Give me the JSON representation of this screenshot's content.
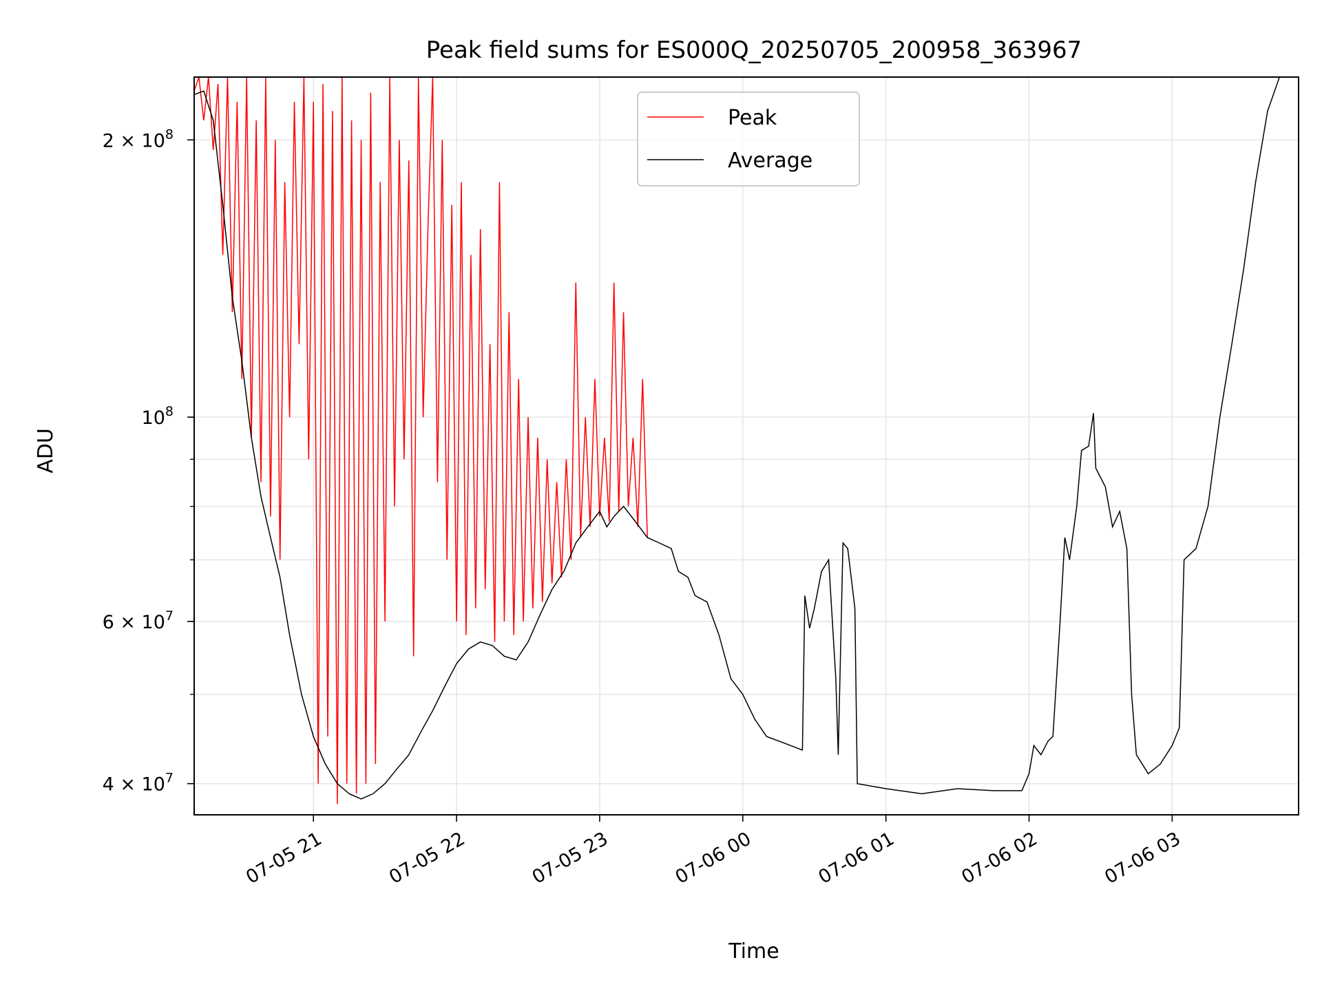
{
  "chart_data": {
    "type": "line",
    "title": "Peak field sums for ES000Q_20250705_200958_363967",
    "xlabel": "Time",
    "ylabel": "ADU",
    "yscale": "log",
    "xlim": [
      "2025-07-05 20:10",
      "2025-07-06 03:53"
    ],
    "ylim": [
      37000000,
      234000000
    ],
    "grid": true,
    "legend_position": "top-center",
    "x_ticks": [
      {
        "value": "2025-07-05 21:00",
        "label": "07-05 21"
      },
      {
        "value": "2025-07-05 22:00",
        "label": "07-05 22"
      },
      {
        "value": "2025-07-05 23:00",
        "label": "07-05 23"
      },
      {
        "value": "2025-07-06 00:00",
        "label": "07-06 00"
      },
      {
        "value": "2025-07-06 01:00",
        "label": "07-06 01"
      },
      {
        "value": "2025-07-06 02:00",
        "label": "07-06 02"
      },
      {
        "value": "2025-07-06 03:00",
        "label": "07-06 03"
      }
    ],
    "y_ticks": [
      {
        "value": 40000000,
        "label": "4 × 10",
        "exp": "7"
      },
      {
        "value": 60000000,
        "label": "6 × 10",
        "exp": "7"
      },
      {
        "value": 100000000,
        "label": "10",
        "exp": "8"
      },
      {
        "value": 200000000,
        "label": "2 × 10",
        "exp": "8"
      }
    ],
    "series": [
      {
        "name": "Average",
        "color": "#000000",
        "points": [
          [
            "2025-07-05 20:10",
            224000000
          ],
          [
            "2025-07-05 20:14",
            226000000
          ],
          [
            "2025-07-05 20:18",
            210000000
          ],
          [
            "2025-07-05 20:22",
            170000000
          ],
          [
            "2025-07-05 20:26",
            135000000
          ],
          [
            "2025-07-05 20:30",
            115000000
          ],
          [
            "2025-07-05 20:34",
            95000000
          ],
          [
            "2025-07-05 20:38",
            82000000
          ],
          [
            "2025-07-05 20:42",
            74000000
          ],
          [
            "2025-07-05 20:46",
            67000000
          ],
          [
            "2025-07-05 20:50",
            58000000
          ],
          [
            "2025-07-05 20:55",
            50000000
          ],
          [
            "2025-07-05 21:00",
            45000000
          ],
          [
            "2025-07-05 21:05",
            42000000
          ],
          [
            "2025-07-05 21:10",
            40000000
          ],
          [
            "2025-07-05 21:15",
            39000000
          ],
          [
            "2025-07-05 21:20",
            38500000
          ],
          [
            "2025-07-05 21:25",
            39000000
          ],
          [
            "2025-07-05 21:30",
            40000000
          ],
          [
            "2025-07-05 21:35",
            41500000
          ],
          [
            "2025-07-05 21:40",
            43000000
          ],
          [
            "2025-07-05 21:45",
            45500000
          ],
          [
            "2025-07-05 21:50",
            48000000
          ],
          [
            "2025-07-05 21:55",
            51000000
          ],
          [
            "2025-07-05 22:00",
            54000000
          ],
          [
            "2025-07-05 22:05",
            56000000
          ],
          [
            "2025-07-05 22:10",
            57000000
          ],
          [
            "2025-07-05 22:15",
            56500000
          ],
          [
            "2025-07-05 22:20",
            55000000
          ],
          [
            "2025-07-05 22:25",
            54500000
          ],
          [
            "2025-07-05 22:30",
            57000000
          ],
          [
            "2025-07-05 22:35",
            61000000
          ],
          [
            "2025-07-05 22:40",
            65000000
          ],
          [
            "2025-07-05 22:45",
            68000000
          ],
          [
            "2025-07-05 22:50",
            73000000
          ],
          [
            "2025-07-05 22:55",
            76000000
          ],
          [
            "2025-07-05 23:00",
            79000000
          ],
          [
            "2025-07-05 23:03",
            76000000
          ],
          [
            "2025-07-05 23:06",
            78000000
          ],
          [
            "2025-07-05 23:10",
            80000000
          ],
          [
            "2025-07-05 23:15",
            77000000
          ],
          [
            "2025-07-05 23:20",
            74000000
          ],
          [
            "2025-07-05 23:25",
            73000000
          ],
          [
            "2025-07-05 23:30",
            72000000
          ],
          [
            "2025-07-05 23:33",
            68000000
          ],
          [
            "2025-07-05 23:37",
            67000000
          ],
          [
            "2025-07-05 23:40",
            64000000
          ],
          [
            "2025-07-05 23:45",
            63000000
          ],
          [
            "2025-07-05 23:50",
            58000000
          ],
          [
            "2025-07-05 23:55",
            52000000
          ],
          [
            "2025-07-06 00:00",
            50000000
          ],
          [
            "2025-07-06 00:05",
            47000000
          ],
          [
            "2025-07-06 00:10",
            45000000
          ],
          [
            "2025-07-06 00:15",
            44500000
          ],
          [
            "2025-07-06 00:20",
            44000000
          ],
          [
            "2025-07-06 00:25",
            43500000
          ],
          [
            "2025-07-06 00:26",
            64000000
          ],
          [
            "2025-07-06 00:28",
            59000000
          ],
          [
            "2025-07-06 00:30",
            62000000
          ],
          [
            "2025-07-06 00:33",
            68000000
          ],
          [
            "2025-07-06 00:36",
            70000000
          ],
          [
            "2025-07-06 00:39",
            52000000
          ],
          [
            "2025-07-06 00:40",
            43000000
          ],
          [
            "2025-07-06 00:42",
            73000000
          ],
          [
            "2025-07-06 00:44",
            72000000
          ],
          [
            "2025-07-06 00:47",
            62000000
          ],
          [
            "2025-07-06 00:48",
            40000000
          ],
          [
            "2025-07-06 01:00",
            39500000
          ],
          [
            "2025-07-06 01:15",
            39000000
          ],
          [
            "2025-07-06 01:30",
            39500000
          ],
          [
            "2025-07-06 01:45",
            39300000
          ],
          [
            "2025-07-06 01:57",
            39300000
          ],
          [
            "2025-07-06 02:00",
            41000000
          ],
          [
            "2025-07-06 02:02",
            44000000
          ],
          [
            "2025-07-06 02:05",
            43000000
          ],
          [
            "2025-07-06 02:08",
            44500000
          ],
          [
            "2025-07-06 02:10",
            45000000
          ],
          [
            "2025-07-06 02:13",
            60000000
          ],
          [
            "2025-07-06 02:15",
            74000000
          ],
          [
            "2025-07-06 02:17",
            70000000
          ],
          [
            "2025-07-06 02:20",
            80000000
          ],
          [
            "2025-07-06 02:22",
            92000000
          ],
          [
            "2025-07-06 02:25",
            93000000
          ],
          [
            "2025-07-06 02:27",
            101000000
          ],
          [
            "2025-07-06 02:28",
            88000000
          ],
          [
            "2025-07-06 02:32",
            84000000
          ],
          [
            "2025-07-06 02:35",
            76000000
          ],
          [
            "2025-07-06 02:38",
            79000000
          ],
          [
            "2025-07-06 02:41",
            72000000
          ],
          [
            "2025-07-06 02:43",
            50000000
          ],
          [
            "2025-07-06 02:45",
            43000000
          ],
          [
            "2025-07-06 02:50",
            41000000
          ],
          [
            "2025-07-06 02:55",
            42000000
          ],
          [
            "2025-07-06 03:00",
            44000000
          ],
          [
            "2025-07-06 03:03",
            46000000
          ],
          [
            "2025-07-06 03:05",
            70000000
          ],
          [
            "2025-07-06 03:10",
            72000000
          ],
          [
            "2025-07-06 03:15",
            80000000
          ],
          [
            "2025-07-06 03:20",
            100000000
          ],
          [
            "2025-07-06 03:25",
            120000000
          ],
          [
            "2025-07-06 03:30",
            145000000
          ],
          [
            "2025-07-06 03:35",
            180000000
          ],
          [
            "2025-07-06 03:40",
            215000000
          ],
          [
            "2025-07-06 03:45",
            234000000
          ],
          [
            "2025-07-06 03:53",
            234000000
          ]
        ]
      },
      {
        "name": "Peak",
        "color": "#ff0000",
        "points": [
          [
            "2025-07-05 20:10",
            226000000
          ],
          [
            "2025-07-05 20:12",
            234000000
          ],
          [
            "2025-07-05 20:14",
            210000000
          ],
          [
            "2025-07-05 20:16",
            234000000
          ],
          [
            "2025-07-05 20:18",
            195000000
          ],
          [
            "2025-07-05 20:20",
            230000000
          ],
          [
            "2025-07-05 20:22",
            150000000
          ],
          [
            "2025-07-05 20:24",
            234000000
          ],
          [
            "2025-07-05 20:26",
            130000000
          ],
          [
            "2025-07-05 20:28",
            220000000
          ],
          [
            "2025-07-05 20:30",
            110000000
          ],
          [
            "2025-07-05 20:32",
            234000000
          ],
          [
            "2025-07-05 20:34",
            95000000
          ],
          [
            "2025-07-05 20:36",
            210000000
          ],
          [
            "2025-07-05 20:38",
            85000000
          ],
          [
            "2025-07-05 20:40",
            234000000
          ],
          [
            "2025-07-05 20:42",
            78000000
          ],
          [
            "2025-07-05 20:44",
            200000000
          ],
          [
            "2025-07-05 20:46",
            70000000
          ],
          [
            "2025-07-05 20:48",
            180000000
          ],
          [
            "2025-07-05 20:50",
            100000000
          ],
          [
            "2025-07-05 20:52",
            220000000
          ],
          [
            "2025-07-05 20:54",
            120000000
          ],
          [
            "2025-07-05 20:56",
            234000000
          ],
          [
            "2025-07-05 20:58",
            90000000
          ],
          [
            "2025-07-05 21:00",
            220000000
          ],
          [
            "2025-07-05 21:02",
            40000000
          ],
          [
            "2025-07-05 21:04",
            230000000
          ],
          [
            "2025-07-05 21:06",
            45000000
          ],
          [
            "2025-07-05 21:08",
            215000000
          ],
          [
            "2025-07-05 21:10",
            38000000
          ],
          [
            "2025-07-05 21:12",
            234000000
          ],
          [
            "2025-07-05 21:14",
            40000000
          ],
          [
            "2025-07-05 21:16",
            210000000
          ],
          [
            "2025-07-05 21:18",
            39000000
          ],
          [
            "2025-07-05 21:20",
            200000000
          ],
          [
            "2025-07-05 21:22",
            40000000
          ],
          [
            "2025-07-05 21:24",
            225000000
          ],
          [
            "2025-07-05 21:26",
            42000000
          ],
          [
            "2025-07-05 21:28",
            180000000
          ],
          [
            "2025-07-05 21:30",
            60000000
          ],
          [
            "2025-07-05 21:32",
            234000000
          ],
          [
            "2025-07-05 21:34",
            80000000
          ],
          [
            "2025-07-05 21:36",
            200000000
          ],
          [
            "2025-07-05 21:38",
            90000000
          ],
          [
            "2025-07-05 21:40",
            190000000
          ],
          [
            "2025-07-05 21:42",
            55000000
          ],
          [
            "2025-07-05 21:44",
            234000000
          ],
          [
            "2025-07-05 21:46",
            100000000
          ],
          [
            "2025-07-05 21:48",
            160000000
          ],
          [
            "2025-07-05 21:50",
            234000000
          ],
          [
            "2025-07-05 21:52",
            85000000
          ],
          [
            "2025-07-05 21:54",
            200000000
          ],
          [
            "2025-07-05 21:56",
            70000000
          ],
          [
            "2025-07-05 21:58",
            170000000
          ],
          [
            "2025-07-05 22:00",
            60000000
          ],
          [
            "2025-07-05 22:02",
            180000000
          ],
          [
            "2025-07-05 22:04",
            58000000
          ],
          [
            "2025-07-05 22:06",
            150000000
          ],
          [
            "2025-07-05 22:08",
            62000000
          ],
          [
            "2025-07-05 22:10",
            160000000
          ],
          [
            "2025-07-05 22:12",
            65000000
          ],
          [
            "2025-07-05 22:14",
            120000000
          ],
          [
            "2025-07-05 22:16",
            57000000
          ],
          [
            "2025-07-05 22:18",
            180000000
          ],
          [
            "2025-07-05 22:20",
            60000000
          ],
          [
            "2025-07-05 22:22",
            130000000
          ],
          [
            "2025-07-05 22:24",
            58000000
          ],
          [
            "2025-07-05 22:26",
            110000000
          ],
          [
            "2025-07-05 22:28",
            60000000
          ],
          [
            "2025-07-05 22:30",
            100000000
          ],
          [
            "2025-07-05 22:32",
            62000000
          ],
          [
            "2025-07-05 22:34",
            95000000
          ],
          [
            "2025-07-05 22:36",
            63000000
          ],
          [
            "2025-07-05 22:38",
            90000000
          ],
          [
            "2025-07-05 22:40",
            66000000
          ],
          [
            "2025-07-05 22:42",
            85000000
          ],
          [
            "2025-07-05 22:44",
            67000000
          ],
          [
            "2025-07-05 22:46",
            90000000
          ],
          [
            "2025-07-05 22:48",
            70000000
          ],
          [
            "2025-07-05 22:50",
            140000000
          ],
          [
            "2025-07-05 22:52",
            74000000
          ],
          [
            "2025-07-05 22:54",
            100000000
          ],
          [
            "2025-07-05 22:56",
            76000000
          ],
          [
            "2025-07-05 22:58",
            110000000
          ],
          [
            "2025-07-05 23:00",
            78000000
          ],
          [
            "2025-07-05 23:02",
            95000000
          ],
          [
            "2025-07-05 23:04",
            77000000
          ],
          [
            "2025-07-05 23:06",
            140000000
          ],
          [
            "2025-07-05 23:08",
            79000000
          ],
          [
            "2025-07-05 23:10",
            130000000
          ],
          [
            "2025-07-05 23:12",
            80000000
          ],
          [
            "2025-07-05 23:14",
            95000000
          ],
          [
            "2025-07-05 23:16",
            76000000
          ],
          [
            "2025-07-05 23:18",
            110000000
          ],
          [
            "2025-07-05 23:20",
            74000000
          ]
        ]
      }
    ]
  }
}
